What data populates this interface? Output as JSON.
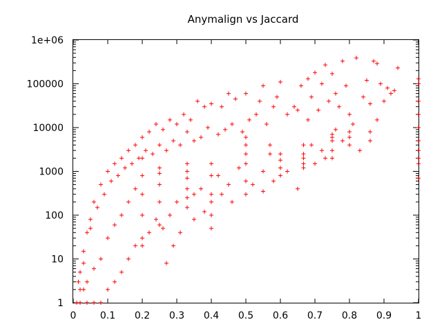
{
  "chart_data": {
    "type": "scatter",
    "title": "Anymalign vs Jaccard",
    "xlabel": "",
    "ylabel": "",
    "xlim": [
      0,
      1
    ],
    "ylim": [
      1,
      1000000
    ],
    "y_scale": "log",
    "x_ticks": [
      "0",
      "0.1",
      "0.2",
      "0.3",
      "0.4",
      "0.5",
      "0.6",
      "0.7",
      "0.8",
      "0.9",
      "1"
    ],
    "y_ticks": [
      "1",
      "10",
      "100",
      "1000",
      "10000",
      "100000",
      "1e+06"
    ],
    "marker": "plus",
    "color": "#ff0000",
    "grid": false,
    "points": [
      [
        0.94,
        230000
      ],
      [
        0.82,
        390000
      ],
      [
        0.78,
        330000
      ],
      [
        0.87,
        330000
      ],
      [
        0.88,
        290000
      ],
      [
        0.73,
        270000
      ],
      [
        0.7,
        180000
      ],
      [
        0.75,
        170000
      ],
      [
        0.68,
        130000
      ],
      [
        0.66,
        90000
      ],
      [
        0.6,
        110000
      ],
      [
        0.55,
        90000
      ],
      [
        0.5,
        60000
      ],
      [
        0.47,
        45000
      ],
      [
        0.45,
        60000
      ],
      [
        0.43,
        30000
      ],
      [
        0.4,
        35000
      ],
      [
        0.38,
        30000
      ],
      [
        0.36,
        40000
      ],
      [
        0.34,
        15000
      ],
      [
        0.32,
        20000
      ],
      [
        0.3,
        12000
      ],
      [
        0.28,
        15000
      ],
      [
        0.26,
        9000
      ],
      [
        0.24,
        12000
      ],
      [
        0.22,
        8000
      ],
      [
        0.2,
        6000
      ],
      [
        0.18,
        4000
      ],
      [
        0.16,
        3000
      ],
      [
        0.14,
        2000
      ],
      [
        0.12,
        1500
      ],
      [
        0.1,
        1000
      ],
      [
        0.08,
        500
      ],
      [
        0.06,
        200
      ],
      [
        0.05,
        80
      ],
      [
        0.04,
        40
      ],
      [
        0.03,
        15
      ],
      [
        0.02,
        5
      ],
      [
        0.015,
        3
      ],
      [
        0.01,
        1
      ],
      [
        0.92,
        60000
      ],
      [
        0.91,
        80000
      ],
      [
        0.9,
        40000
      ],
      [
        0.86,
        35000
      ],
      [
        0.84,
        50000
      ],
      [
        0.8,
        20000
      ],
      [
        0.77,
        30000
      ],
      [
        0.74,
        40000
      ],
      [
        0.71,
        25000
      ],
      [
        0.68,
        15000
      ],
      [
        0.65,
        25000
      ],
      [
        0.62,
        20000
      ],
      [
        0.58,
        30000
      ],
      [
        0.56,
        12000
      ],
      [
        0.53,
        20000
      ],
      [
        0.51,
        15000
      ],
      [
        0.49,
        8000
      ],
      [
        0.46,
        12000
      ],
      [
        0.44,
        9000
      ],
      [
        0.42,
        7000
      ],
      [
        0.39,
        10000
      ],
      [
        0.37,
        6000
      ],
      [
        0.35,
        5000
      ],
      [
        0.33,
        8000
      ],
      [
        0.31,
        4000
      ],
      [
        0.29,
        5000
      ],
      [
        0.27,
        3000
      ],
      [
        0.25,
        4000
      ],
      [
        0.23,
        2500
      ],
      [
        0.21,
        3000
      ],
      [
        0.19,
        2000
      ],
      [
        0.17,
        1500
      ],
      [
        0.15,
        1200
      ],
      [
        0.13,
        800
      ],
      [
        0.11,
        600
      ],
      [
        0.09,
        300
      ],
      [
        0.07,
        150
      ],
      [
        0.05,
        50
      ],
      [
        0.03,
        8
      ],
      [
        0.02,
        2
      ],
      [
        0.83,
        3000
      ],
      [
        0.78,
        5000
      ],
      [
        0.73,
        2000
      ],
      [
        0.7,
        1500
      ],
      [
        0.65,
        400
      ],
      [
        0.6,
        800
      ],
      [
        0.58,
        600
      ],
      [
        0.55,
        1000
      ],
      [
        0.5,
        300
      ],
      [
        0.48,
        1200
      ],
      [
        0.45,
        500
      ],
      [
        0.42,
        800
      ],
      [
        0.4,
        200
      ],
      [
        0.37,
        400
      ],
      [
        0.35,
        300
      ],
      [
        0.33,
        150
      ],
      [
        0.3,
        200
      ],
      [
        0.28,
        100
      ],
      [
        0.26,
        50
      ],
      [
        0.24,
        80
      ],
      [
        0.22,
        40
      ],
      [
        0.2,
        30
      ],
      [
        0.18,
        20
      ],
      [
        0.16,
        10
      ],
      [
        0.14,
        5
      ],
      [
        0.12,
        3
      ],
      [
        0.1,
        2
      ],
      [
        0.08,
        1
      ],
      [
        0.06,
        1
      ],
      [
        0.04,
        1
      ],
      [
        1.0,
        40000
      ],
      [
        1.0,
        20000
      ],
      [
        1.0,
        10000
      ],
      [
        1.0,
        5000
      ],
      [
        1.0,
        3000
      ],
      [
        1.0,
        2000
      ],
      [
        1.0,
        1500
      ],
      [
        1.0,
        700
      ],
      [
        1.0,
        100000
      ],
      [
        1.0,
        130000
      ],
      [
        0.667,
        2500
      ],
      [
        0.667,
        2000
      ],
      [
        0.667,
        1200
      ],
      [
        0.667,
        1500
      ],
      [
        0.667,
        4000
      ],
      [
        0.75,
        7000
      ],
      [
        0.75,
        6000
      ],
      [
        0.75,
        5000
      ],
      [
        0.75,
        3000
      ],
      [
        0.75,
        2000
      ],
      [
        0.5,
        6000
      ],
      [
        0.5,
        4000
      ],
      [
        0.5,
        2500
      ],
      [
        0.5,
        1500
      ],
      [
        0.5,
        600
      ],
      [
        0.33,
        1500
      ],
      [
        0.33,
        1000
      ],
      [
        0.33,
        700
      ],
      [
        0.33,
        400
      ],
      [
        0.33,
        250
      ],
      [
        0.25,
        1200
      ],
      [
        0.25,
        900
      ],
      [
        0.25,
        500
      ],
      [
        0.25,
        200
      ],
      [
        0.25,
        60
      ],
      [
        0.2,
        2000
      ],
      [
        0.2,
        800
      ],
      [
        0.2,
        300
      ],
      [
        0.2,
        100
      ],
      [
        0.2,
        20
      ],
      [
        0.4,
        1500
      ],
      [
        0.4,
        800
      ],
      [
        0.4,
        300
      ],
      [
        0.4,
        100
      ],
      [
        0.4,
        50
      ],
      [
        0.6,
        2500
      ],
      [
        0.6,
        1800
      ],
      [
        0.6,
        1200
      ],
      [
        0.57,
        4000
      ],
      [
        0.57,
        2500
      ],
      [
        0.8,
        8000
      ],
      [
        0.8,
        6000
      ],
      [
        0.8,
        4000
      ],
      [
        0.86,
        5000
      ],
      [
        0.86,
        8000
      ],
      [
        0.16,
        200
      ],
      [
        0.18,
        400
      ],
      [
        0.14,
        100
      ],
      [
        0.12,
        60
      ],
      [
        0.1,
        30
      ],
      [
        0.08,
        10
      ],
      [
        0.06,
        6
      ],
      [
        0.04,
        3
      ],
      [
        0.03,
        2
      ],
      [
        0.02,
        1
      ],
      [
        0.29,
        20
      ],
      [
        0.27,
        8
      ],
      [
        0.31,
        40
      ],
      [
        0.35,
        80
      ],
      [
        0.38,
        120
      ],
      [
        0.43,
        300
      ],
      [
        0.46,
        200
      ],
      [
        0.52,
        500
      ],
      [
        0.55,
        350
      ],
      [
        0.62,
        1000
      ],
      [
        0.72,
        3000
      ],
      [
        0.69,
        4000
      ],
      [
        0.76,
        9000
      ],
      [
        0.81,
        12000
      ],
      [
        0.88,
        15000
      ],
      [
        0.93,
        70000
      ],
      [
        0.89,
        100000
      ],
      [
        0.85,
        120000
      ],
      [
        0.79,
        90000
      ],
      [
        0.76,
        60000
      ],
      [
        0.72,
        100000
      ],
      [
        0.69,
        50000
      ],
      [
        0.64,
        30000
      ],
      [
        0.59,
        50000
      ],
      [
        0.54,
        40000
      ]
    ]
  }
}
